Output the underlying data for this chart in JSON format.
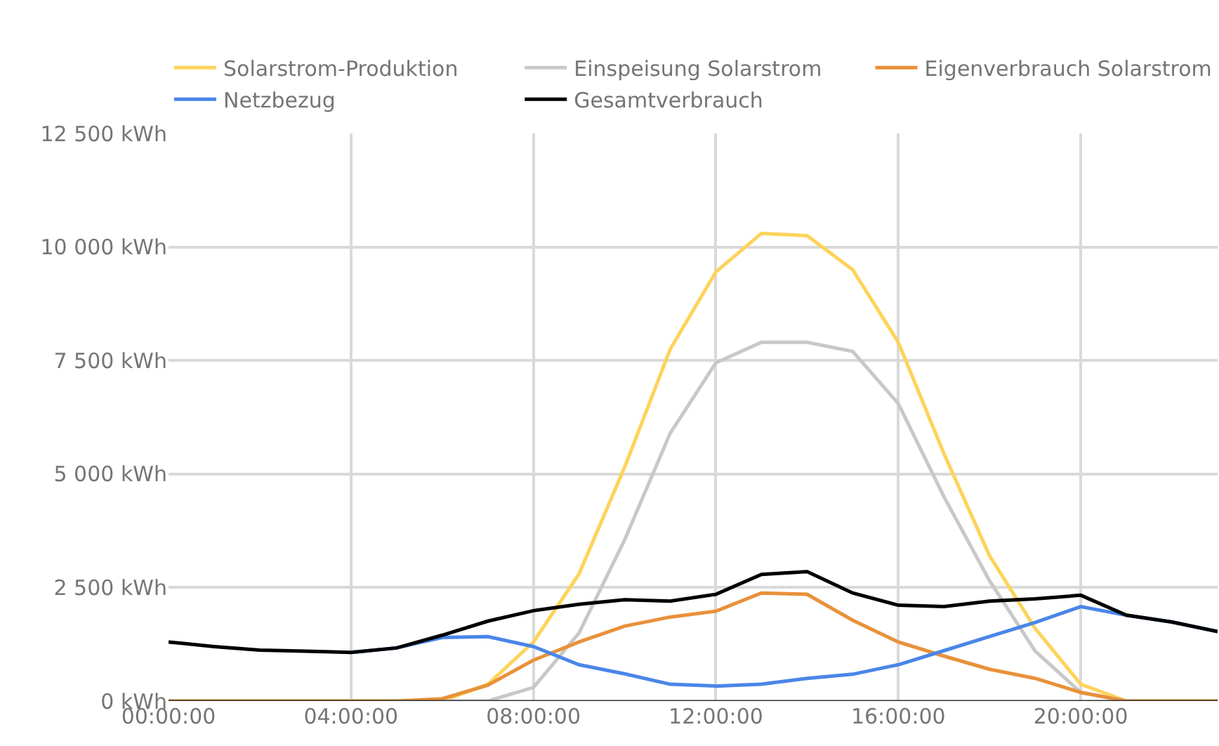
{
  "chart_data": {
    "type": "line",
    "x": [
      0,
      1,
      2,
      3,
      4,
      5,
      6,
      7,
      8,
      9,
      10,
      11,
      12,
      13,
      14,
      15,
      16,
      17,
      18,
      19,
      20,
      21,
      22,
      23
    ],
    "series": [
      {
        "name": "Solarstrom-Produktion",
        "color": "#fdd35a",
        "values": [
          0,
          0,
          0,
          0,
          0,
          0,
          0,
          370,
          1300,
          2800,
          5150,
          7750,
          9450,
          10300,
          10250,
          9500,
          7900,
          5450,
          3200,
          1600,
          370,
          0,
          0,
          0
        ]
      },
      {
        "name": "Einspeisung Solarstrom",
        "color": "#c8c8c8",
        "values": [
          0,
          0,
          0,
          0,
          0,
          0,
          0,
          0,
          300,
          1500,
          3550,
          5900,
          7450,
          7900,
          7900,
          7700,
          6550,
          4500,
          2650,
          1100,
          190,
          0,
          0,
          0
        ]
      },
      {
        "name": "Eigenverbrauch Solarstrom",
        "color": "#e8913a",
        "values": [
          0,
          0,
          0,
          0,
          0,
          0,
          50,
          350,
          900,
          1300,
          1650,
          1850,
          1980,
          2380,
          2350,
          1780,
          1300,
          990,
          700,
          500,
          190,
          0,
          0,
          0
        ]
      },
      {
        "name": "Netzbezug",
        "color": "#4a86e8",
        "values": [
          null,
          null,
          null,
          null,
          1070,
          1170,
          1400,
          1420,
          1200,
          800,
          600,
          370,
          330,
          370,
          500,
          590,
          800,
          1110,
          1420,
          1730,
          2080,
          1890,
          1740,
          1530
        ]
      },
      {
        "name": "Gesamtverbrauch",
        "color": "#000000",
        "values": [
          1300,
          1200,
          1120,
          1100,
          1070,
          1170,
          1450,
          1760,
          1990,
          2130,
          2230,
          2200,
          2350,
          2790,
          2850,
          2380,
          2110,
          2080,
          2200,
          2250,
          2330,
          1890,
          1740,
          1530
        ]
      }
    ],
    "xlim": [
      0,
      23
    ],
    "xticks": [
      {
        "value": 0,
        "label": "00:00:00"
      },
      {
        "value": 4,
        "label": "04:00:00"
      },
      {
        "value": 8,
        "label": "08:00:00"
      },
      {
        "value": 12,
        "label": "12:00:00"
      },
      {
        "value": 16,
        "label": "16:00:00"
      },
      {
        "value": 20,
        "label": "20:00:00"
      }
    ],
    "ylim": [
      0,
      12500
    ],
    "yticks": [
      {
        "value": 0,
        "label": "0 kWh"
      },
      {
        "value": 2500,
        "label": "2 500 kWh"
      },
      {
        "value": 5000,
        "label": "5 000 kWh"
      },
      {
        "value": 7500,
        "label": "7 500 kWh"
      },
      {
        "value": 10000,
        "label": "10 000 kWh"
      },
      {
        "value": 12500,
        "label": "12 500 kWh"
      }
    ],
    "grid": true,
    "legend": "top",
    "marker": "none",
    "line_style": "solid"
  }
}
